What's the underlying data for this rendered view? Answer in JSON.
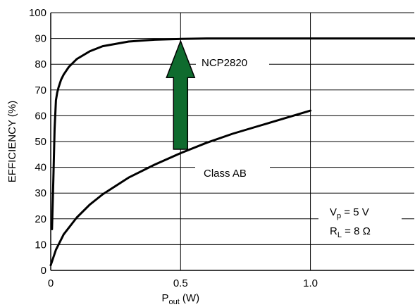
{
  "chart_data": {
    "type": "line",
    "xlabel": "P",
    "xlabel_sub": "out",
    "xlabel_unit": " (W)",
    "ylabel": "EFFICIENCY (%)",
    "xlim": [
      0,
      1.4
    ],
    "ylim": [
      0,
      100
    ],
    "x_ticks": [
      0,
      0.5,
      1.0
    ],
    "x_tick_labels": [
      "0",
      "0.5",
      "1.0"
    ],
    "y_ticks": [
      0,
      10,
      20,
      30,
      40,
      50,
      60,
      70,
      80,
      90,
      100
    ],
    "y_tick_labels": [
      "0",
      "10",
      "20",
      "30",
      "40",
      "50",
      "60",
      "70",
      "80",
      "90",
      "100"
    ],
    "grid": true,
    "series": [
      {
        "name": "NCP2820",
        "x": [
          0.005,
          0.01,
          0.015,
          0.02,
          0.025,
          0.03,
          0.04,
          0.05,
          0.07,
          0.1,
          0.15,
          0.2,
          0.3,
          0.4,
          0.5,
          0.6,
          0.8,
          1.0,
          1.2,
          1.4
        ],
        "y": [
          16,
          35,
          55,
          66,
          69,
          71,
          74,
          76,
          79,
          82,
          85,
          87,
          88.8,
          89.5,
          89.8,
          90,
          90,
          90,
          90,
          90
        ]
      },
      {
        "name": "Class AB",
        "x": [
          0,
          0.01,
          0.02,
          0.05,
          0.1,
          0.15,
          0.2,
          0.3,
          0.4,
          0.5,
          0.6,
          0.7,
          0.8,
          0.9,
          1.0
        ],
        "y": [
          2,
          5,
          8,
          14,
          20.5,
          25.5,
          29.5,
          36,
          41,
          45.5,
          49.5,
          53,
          56,
          59,
          62
        ]
      }
    ],
    "annotations": {
      "ncp_label": "NCP2820",
      "ab_label": "Class AB",
      "vp_main": "V",
      "vp_sub": "p",
      "vp_rest": " = 5 V",
      "rl_main": "R",
      "rl_sub": "L",
      "rl_rest": " = 8 Ω"
    },
    "arrow": {
      "x": 0.5,
      "from_y": 47,
      "to_y": 89,
      "color": "#0f6b2e"
    }
  }
}
